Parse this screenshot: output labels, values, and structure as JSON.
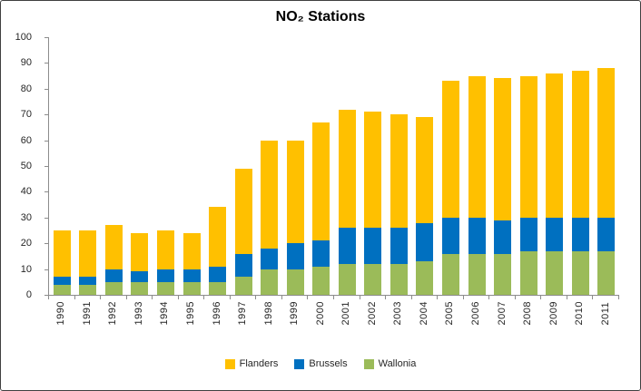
{
  "window": {
    "background": "#FFFFFF",
    "border_color": "#3F3F3F"
  },
  "chart_data": {
    "type": "bar",
    "stacked": true,
    "title": "NO₂ Stations",
    "categories": [
      "1990",
      "1991",
      "1992",
      "1993",
      "1994",
      "1995",
      "1996",
      "1997",
      "1998",
      "1999",
      "2000",
      "2001",
      "2002",
      "2003",
      "2004",
      "2005",
      "2006",
      "2007",
      "2008",
      "2009",
      "2010",
      "2011"
    ],
    "series": [
      {
        "name": "Flanders",
        "color": "#FFC000",
        "values": [
          18,
          18,
          17,
          15,
          15,
          14,
          23,
          33,
          42,
          40,
          46,
          46,
          45,
          44,
          41,
          53,
          55,
          55,
          55,
          56,
          57,
          58
        ]
      },
      {
        "name": "Brussels",
        "color": "#0070C0",
        "values": [
          3,
          3,
          5,
          4,
          5,
          5,
          6,
          9,
          8,
          10,
          10,
          14,
          14,
          14,
          15,
          14,
          14,
          13,
          13,
          13,
          13,
          13
        ]
      },
      {
        "name": "Wallonia",
        "color": "#9BBB59",
        "values": [
          4,
          4,
          5,
          5,
          5,
          5,
          5,
          7,
          10,
          10,
          11,
          12,
          12,
          12,
          13,
          16,
          16,
          16,
          17,
          17,
          17,
          17
        ]
      }
    ],
    "totals": [
      25,
      25,
      27,
      24,
      25,
      24,
      34,
      49,
      60,
      60,
      67,
      72,
      71,
      70,
      69,
      83,
      85,
      84,
      85,
      86,
      87,
      88
    ],
    "stack_order_bottom_to_top": [
      "Wallonia",
      "Brussels",
      "Flanders"
    ],
    "xlabel": "",
    "ylabel": "",
    "ylim": [
      0,
      100
    ],
    "y_ticks": [
      0,
      10,
      20,
      30,
      40,
      50,
      60,
      70,
      80,
      90,
      100
    ],
    "grid": false,
    "legend_position": "bottom",
    "axis_color": "#8C8C8C",
    "label_color": "#262626"
  }
}
